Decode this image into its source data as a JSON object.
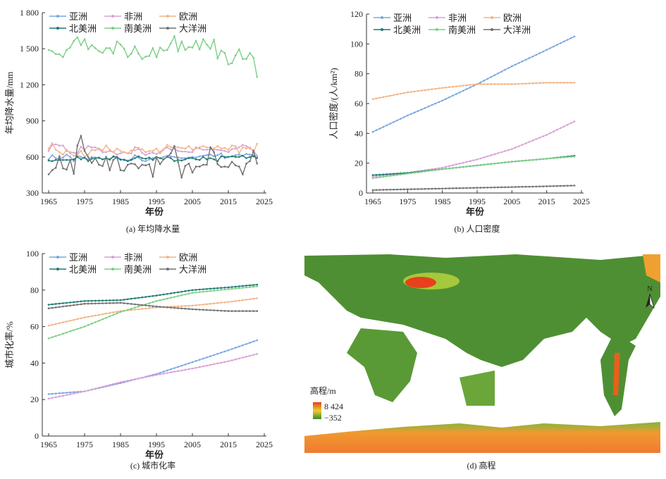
{
  "series_names": [
    "亚洲",
    "非洲",
    "欧洲",
    "北美洲",
    "南美洲",
    "大洋洲"
  ],
  "colors": {
    "亚洲": "#7aa6e0",
    "非洲": "#d8a0d8",
    "欧洲": "#f4b486",
    "北美洲": "#1f7a70",
    "南美洲": "#7ccf86",
    "大洋洲": "#707070"
  },
  "chart_data": [
    {
      "type": "line",
      "id": "a",
      "caption": "(a) 年均降水量",
      "xlabel": "年份",
      "ylabel": "年均降水量/mm",
      "xlim": [
        1965,
        2025
      ],
      "xticks": [
        1965,
        1975,
        1985,
        1995,
        2005,
        2015,
        2025
      ],
      "ylim": [
        300,
        1800
      ],
      "yticks": [
        300,
        600,
        900,
        1200,
        1500,
        1800
      ],
      "ytick_labels": [
        "300",
        "600",
        "900",
        "1 200",
        "1 500",
        "1 800"
      ],
      "x_start": 1965,
      "x_step": 1,
      "series": [
        {
          "name": "亚洲",
          "values": [
            580,
            615,
            590,
            585,
            595,
            620,
            600,
            565,
            610,
            600,
            590,
            580,
            600,
            595,
            590,
            580,
            590,
            575,
            600,
            590,
            575,
            580,
            570,
            580,
            615,
            595,
            570,
            565,
            580,
            590,
            600,
            590,
            600,
            610,
            605,
            600,
            595,
            590,
            590,
            595,
            600,
            595,
            605,
            610,
            615,
            620,
            605,
            615,
            630,
            590,
            600,
            605,
            615,
            620,
            610,
            625,
            620,
            615,
            605
          ]
        },
        {
          "name": "非洲",
          "values": [
            650,
            700,
            705,
            695,
            695,
            650,
            640,
            635,
            630,
            685,
            660,
            690,
            680,
            680,
            665,
            640,
            640,
            650,
            640,
            620,
            630,
            640,
            630,
            630,
            680,
            675,
            635,
            615,
            630,
            635,
            625,
            640,
            665,
            680,
            660,
            670,
            650,
            645,
            645,
            640,
            640,
            680,
            670,
            660,
            660,
            665,
            660,
            660,
            655,
            650,
            640,
            665,
            670,
            680,
            700,
            690,
            670,
            655,
            610
          ]
        },
        {
          "name": "欧洲",
          "values": [
            670,
            715,
            660,
            640,
            620,
            660,
            630,
            610,
            620,
            650,
            600,
            620,
            660,
            655,
            670,
            655,
            695,
            660,
            640,
            670,
            650,
            640,
            630,
            655,
            655,
            665,
            665,
            640,
            650,
            650,
            670,
            630,
            660,
            700,
            680,
            685,
            680,
            675,
            670,
            690,
            660,
            670,
            680,
            690,
            680,
            680,
            670,
            690,
            670,
            675,
            660,
            695,
            690,
            630,
            680,
            670,
            680,
            640,
            710
          ]
        },
        {
          "name": "北美洲",
          "values": [
            570,
            565,
            575,
            575,
            575,
            575,
            575,
            580,
            600,
            580,
            595,
            565,
            585,
            590,
            595,
            580,
            590,
            580,
            605,
            600,
            580,
            575,
            565,
            575,
            590,
            605,
            590,
            585,
            595,
            575,
            600,
            590,
            580,
            600,
            590,
            565,
            575,
            570,
            580,
            590,
            590,
            580,
            575,
            600,
            580,
            590,
            580,
            565,
            605,
            600,
            600,
            605,
            600,
            600,
            610,
            590,
            600,
            605,
            590
          ]
        },
        {
          "name": "南美洲",
          "values": [
            1490,
            1480,
            1455,
            1455,
            1430,
            1490,
            1510,
            1565,
            1595,
            1530,
            1580,
            1495,
            1530,
            1505,
            1480,
            1465,
            1505,
            1505,
            1460,
            1560,
            1535,
            1500,
            1430,
            1460,
            1520,
            1460,
            1415,
            1435,
            1440,
            1505,
            1430,
            1510,
            1485,
            1490,
            1545,
            1605,
            1480,
            1560,
            1490,
            1515,
            1510,
            1565,
            1495,
            1580,
            1535,
            1500,
            1575,
            1420,
            1485,
            1465,
            1370,
            1380,
            1445,
            1495,
            1415,
            1415,
            1465,
            1425,
            1265
          ]
        },
        {
          "name": "大洋洲",
          "values": [
            455,
            490,
            510,
            605,
            505,
            495,
            575,
            460,
            695,
            775,
            650,
            600,
            550,
            590,
            535,
            525,
            600,
            490,
            575,
            600,
            490,
            485,
            535,
            545,
            540,
            505,
            535,
            530,
            540,
            435,
            595,
            540,
            580,
            600,
            630,
            690,
            560,
            430,
            525,
            545,
            470,
            520,
            520,
            535,
            535,
            680,
            640,
            540,
            515,
            520,
            515,
            560,
            530,
            520,
            455,
            545,
            565,
            650,
            545
          ]
        }
      ]
    },
    {
      "type": "line",
      "id": "b",
      "caption": "(b) 人口密度",
      "xlabel": "年份",
      "ylabel": "人口密度/(人/km²)",
      "xlim": [
        1965,
        2025
      ],
      "xticks": [
        1965,
        1975,
        1985,
        1995,
        2005,
        2015,
        2025
      ],
      "ylim": [
        0,
        120
      ],
      "yticks": [
        0,
        20,
        40,
        60,
        80,
        100,
        120
      ],
      "ytick_labels": [
        "0",
        "20",
        "40",
        "60",
        "80",
        "100",
        "120"
      ],
      "x": [
        1965,
        1975,
        1985,
        1995,
        2005,
        2015,
        2023
      ],
      "series": [
        {
          "name": "亚洲",
          "values": [
            41,
            52,
            62,
            73,
            85,
            96,
            105
          ]
        },
        {
          "name": "非洲",
          "values": [
            11,
            13.5,
            17,
            22.5,
            29.5,
            39,
            48
          ]
        },
        {
          "name": "欧洲",
          "values": [
            63,
            67.5,
            70.5,
            73,
            73,
            74,
            74
          ]
        },
        {
          "name": "北美洲",
          "values": [
            12,
            13.5,
            16,
            18.5,
            21,
            23,
            25
          ]
        },
        {
          "name": "南美洲",
          "values": [
            10,
            13,
            16,
            18.5,
            21,
            23,
            24.5
          ]
        },
        {
          "name": "大洋洲",
          "values": [
            2,
            2.5,
            3,
            3.5,
            4,
            4.5,
            5
          ]
        }
      ]
    },
    {
      "type": "line",
      "id": "c",
      "caption": "(c) 城市化率",
      "xlabel": "年份",
      "ylabel": "城市化率/%",
      "xlim": [
        1965,
        2025
      ],
      "xticks": [
        1965,
        1975,
        1985,
        1995,
        2005,
        2015,
        2025
      ],
      "ylim": [
        0,
        100
      ],
      "yticks": [
        0,
        20,
        40,
        60,
        80,
        100
      ],
      "ytick_labels": [
        "0",
        "20",
        "40",
        "60",
        "80",
        "100"
      ],
      "x": [
        1965,
        1975,
        1985,
        1995,
        2005,
        2015,
        2023
      ],
      "series": [
        {
          "name": "亚洲",
          "values": [
            23,
            24.5,
            29,
            34,
            40.5,
            47,
            52.5
          ]
        },
        {
          "name": "非洲",
          "values": [
            20.5,
            24.5,
            29.5,
            33.5,
            37,
            41,
            45
          ]
        },
        {
          "name": "欧洲",
          "values": [
            60.5,
            65,
            68.5,
            70.5,
            71.5,
            73.5,
            75.5
          ]
        },
        {
          "name": "北美洲",
          "values": [
            72,
            74,
            74.5,
            77,
            80,
            81.5,
            83
          ]
        },
        {
          "name": "南美洲",
          "values": [
            53.5,
            60,
            68,
            74,
            78.5,
            80.5,
            82
          ]
        },
        {
          "name": "大洋洲",
          "values": [
            70,
            72.5,
            73,
            71,
            69.5,
            68.5,
            68.5
          ]
        }
      ]
    }
  ],
  "map": {
    "caption": "(d) 高程",
    "legend_title": "高程/m",
    "legend_max": "8 424",
    "legend_min": "−352",
    "north_label": "N"
  }
}
